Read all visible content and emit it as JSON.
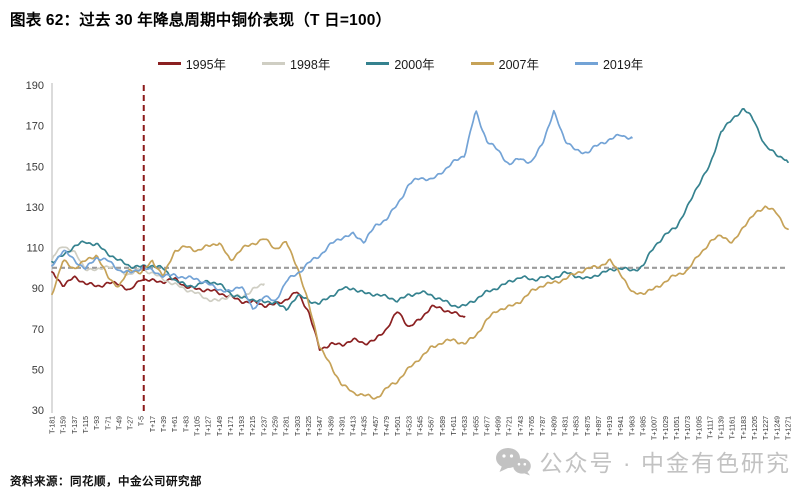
{
  "header": {
    "title": "图表 62：过去 30 年降息周期中铜价表现（T 日=100）"
  },
  "footer": {
    "source": "资料来源：同花顺，中金公司研究部"
  },
  "watermark": {
    "icon": "wechat-icon",
    "text": "公众号 · 中金有色研究"
  },
  "colors": {
    "reference_line": "#9c9c9c",
    "event_line": "#8b1a1a",
    "axis": "#cfcfcf",
    "tick_text": "#3a3a3a",
    "title_text": "#000000"
  },
  "chart_data": {
    "type": "line",
    "title": "过去 30 年降息周期中铜价表现（T 日=100）",
    "legend_position": "top",
    "grid": false,
    "ylim": [
      30,
      190
    ],
    "y_ticks": [
      190,
      170,
      150,
      130,
      110,
      90,
      70,
      50,
      30
    ],
    "x_start": -181,
    "x_step": 22,
    "x_tick_labels": [
      "T-181",
      "T-159",
      "T-137",
      "T-115",
      "T-93",
      "T-71",
      "T-49",
      "T-27",
      "T-5",
      "T+17",
      "T+39",
      "T+61",
      "T+83",
      "T+105",
      "T+127",
      "T+149",
      "T+171",
      "T+193",
      "T+215",
      "T+237",
      "T+259",
      "T+281",
      "T+303",
      "T+325",
      "T+347",
      "T+369",
      "T+391",
      "T+413",
      "T+435",
      "T+457",
      "T+479",
      "T+501",
      "T+523",
      "T+545",
      "T+567",
      "T+589",
      "T+611",
      "T+633",
      "T+655",
      "T+677",
      "T+699",
      "T+721",
      "T+743",
      "T+765",
      "T+787",
      "T+809",
      "T+831",
      "T+853",
      "T+875",
      "T+897",
      "T+919",
      "T+941",
      "T+963",
      "T+985",
      "T+1007",
      "T+1029",
      "T+1051",
      "T+1073",
      "T+1095",
      "T+1117",
      "T+1139",
      "T+1161",
      "T+1183",
      "T+1205",
      "T+1227",
      "T+1249",
      "T+1271"
    ],
    "reference_line_y": 100,
    "event_line_x": 0,
    "series": [
      {
        "name": "1995年",
        "color": "#8b2021",
        "start_day": -181,
        "step_days": 22,
        "values": [
          98,
          92,
          95,
          92,
          91,
          93,
          92,
          88,
          95,
          94,
          93,
          94,
          91,
          90,
          89,
          87,
          86,
          84,
          83,
          81,
          82,
          85,
          88,
          78,
          60,
          63,
          62,
          64,
          63,
          65,
          70,
          78,
          71,
          75,
          81,
          79,
          78,
          76
        ]
      },
      {
        "name": "1998年",
        "color": "#cfcec3",
        "start_day": -181,
        "step_days": 22,
        "values": [
          104,
          111,
          108,
          100,
          98,
          101,
          99,
          97,
          99,
          97,
          95,
          92,
          89,
          87,
          85,
          84,
          86,
          85,
          90,
          92
        ]
      },
      {
        "name": "2000年",
        "color": "#35828f",
        "start_day": -181,
        "step_days": 22,
        "values": [
          103,
          106,
          110,
          113,
          112,
          107,
          103,
          101,
          101,
          101,
          99,
          94,
          92,
          91,
          93,
          92,
          88,
          85,
          84,
          83,
          84,
          79,
          86,
          84,
          83,
          86,
          89,
          90,
          88,
          87,
          85,
          84,
          87,
          88,
          86,
          84,
          82,
          81,
          84,
          88,
          91,
          93,
          95,
          94,
          96,
          95,
          97,
          96,
          95,
          97,
          98,
          100,
          99,
          101,
          110,
          116,
          121,
          130,
          141,
          150,
          168,
          173,
          178,
          172,
          160,
          156,
          152
        ]
      },
      {
        "name": "2007年",
        "color": "#c6a257",
        "start_day": -181,
        "step_days": 22,
        "values": [
          87,
          104,
          100,
          103,
          106,
          96,
          91,
          99,
          97,
          104,
          96,
          108,
          110,
          109,
          111,
          112,
          103,
          110,
          112,
          114,
          109,
          113,
          101,
          82,
          61,
          52,
          43,
          38,
          37,
          36,
          41,
          44,
          50,
          56,
          61,
          63,
          64,
          63,
          67,
          74,
          79,
          81,
          84,
          88,
          91,
          93,
          95,
          97,
          99,
          101,
          104,
          97,
          87,
          88,
          90,
          93,
          96,
          99,
          107,
          112,
          116,
          112,
          121,
          126,
          130,
          127,
          119
        ]
      },
      {
        "name": "2019年",
        "color": "#73a3d6",
        "start_day": -181,
        "step_days": 22,
        "values": [
          101,
          108,
          104,
          100,
          105,
          103,
          99,
          98,
          100,
          98,
          96,
          97,
          95,
          94,
          92,
          90,
          88,
          91,
          79,
          87,
          83,
          93,
          97,
          103,
          106,
          111,
          115,
          117,
          113,
          120,
          124,
          132,
          141,
          144,
          143,
          148,
          152,
          155,
          177,
          163,
          158,
          150,
          154,
          152,
          162,
          176,
          163,
          158,
          157,
          160,
          163,
          166,
          164
        ]
      }
    ]
  }
}
